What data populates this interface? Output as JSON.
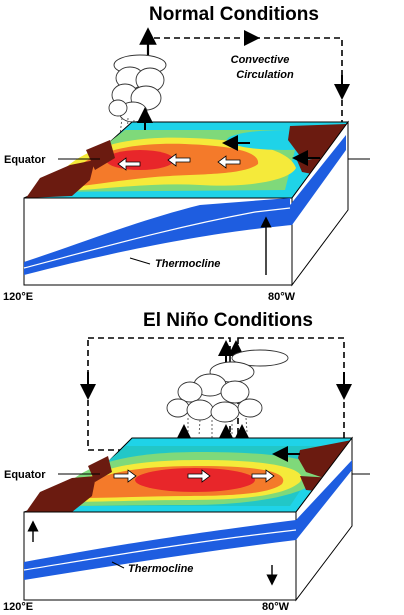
{
  "colors": {
    "warm_core": "#e8262a",
    "warm_orange": "#f47a2a",
    "warm_yellow": "#f5ea3a",
    "mid_green": "#7fd97a",
    "cool_teal": "#22c7c7",
    "cool_cyan": "#1fd3e8",
    "land": "#6b1b10",
    "thermocline_water": "#1e5de0",
    "thermocline_light": "#1c86f2",
    "box_outline": "#000000"
  },
  "normal": {
    "title": "Normal Conditions",
    "circulation_label_1": "Convective",
    "circulation_label_2": "Circulation",
    "equator_label": "Equator",
    "thermocline_label": "Thermocline",
    "west_label": "120°E",
    "east_label": "80°W"
  },
  "elnino": {
    "title": "El Niño Conditions",
    "equator_label": "Equator",
    "thermocline_label": "Thermocline",
    "west_label": "120°E",
    "east_label": "80°W"
  }
}
